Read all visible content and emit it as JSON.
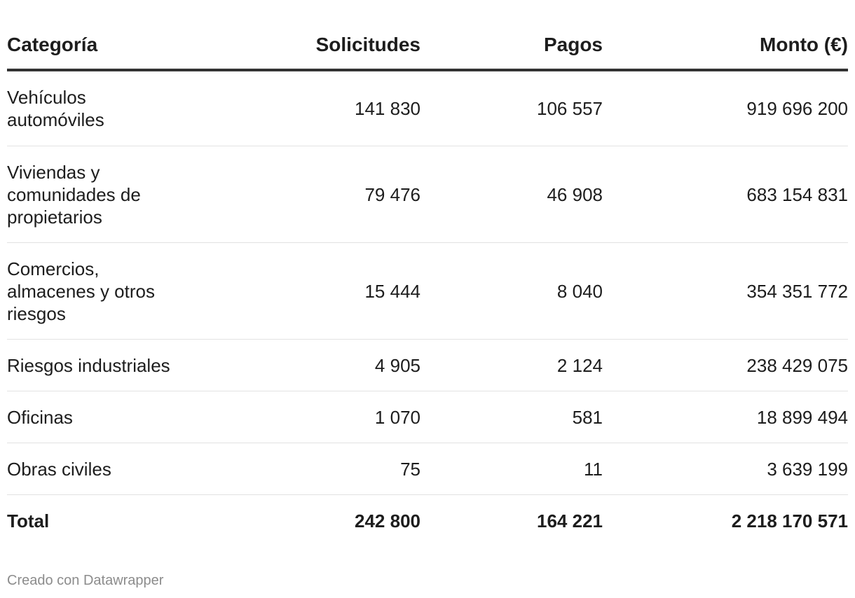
{
  "chart_data": {
    "type": "table",
    "columns": [
      "Categoría",
      "Solicitudes",
      "Pagos",
      "Monto (€)"
    ],
    "rows": [
      {
        "categoria": "Vehículos automóviles",
        "solicitudes": "141 830",
        "pagos": "106 557",
        "monto": "919 696 200"
      },
      {
        "categoria": "Viviendas y comunidades de propietarios",
        "solicitudes": "79 476",
        "pagos": "46 908",
        "monto": "683 154 831"
      },
      {
        "categoria": "Comercios, almacenes y otros riesgos",
        "solicitudes": "15 444",
        "pagos": "8 040",
        "monto": "354 351 772"
      },
      {
        "categoria": "Riesgos industriales",
        "solicitudes": "4 905",
        "pagos": "2 124",
        "monto": "238 429 075"
      },
      {
        "categoria": "Oficinas",
        "solicitudes": "1 070",
        "pagos": "581",
        "monto": "18 899 494"
      },
      {
        "categoria": "Obras civiles",
        "solicitudes": "75",
        "pagos": "11",
        "monto": "3 639 199"
      }
    ],
    "total": {
      "categoria": "Total",
      "solicitudes": "242 800",
      "pagos": "164 221",
      "monto": "2 218 170 571"
    }
  },
  "footer": {
    "credit": "Creado con Datawrapper"
  },
  "colors": {
    "text": "#1d1d1d",
    "header_rule": "#333333",
    "row_rule": "#e2e2e2",
    "footer_text": "#8c8c8c"
  }
}
